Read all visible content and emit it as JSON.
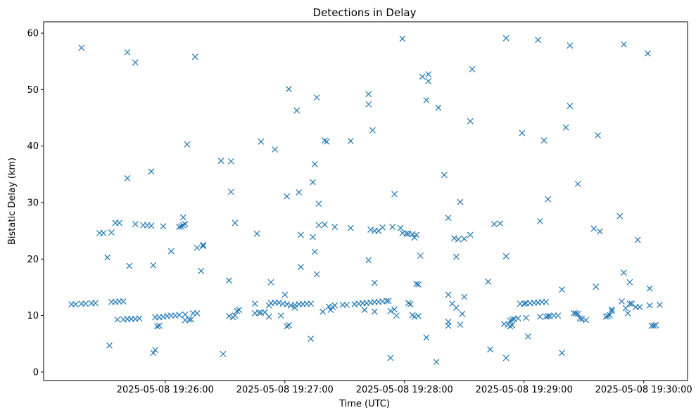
{
  "chart_data": {
    "type": "scatter",
    "title": "Detections in Delay",
    "xlabel": "Time (UTC)",
    "ylabel": "Bistatic Delay (km)",
    "marker": "x",
    "color": "#1f77b4",
    "grid": false,
    "ylim": [
      -1.5,
      62
    ],
    "xlim": [
      "2025-05-08 19:24:59",
      "2025-05-08 19:30:22"
    ],
    "x_ticks": [
      "2025-05-08 19:26:00",
      "2025-05-08 19:27:00",
      "2025-05-08 19:28:00",
      "2025-05-08 19:29:00",
      "2025-05-08 19:30:00"
    ],
    "y_ticks": [
      0,
      10,
      20,
      30,
      40,
      50,
      60
    ],
    "points": [
      [
        "2025-05-08 19:25:13",
        12.0
      ],
      [
        "2025-05-08 19:25:15",
        12.0
      ],
      [
        "2025-05-08 19:25:18",
        12.1
      ],
      [
        "2025-05-08 19:25:20",
        12.1
      ],
      [
        "2025-05-08 19:25:23",
        12.2
      ],
      [
        "2025-05-08 19:25:25",
        12.2
      ],
      [
        "2025-05-08 19:25:18",
        57.4
      ],
      [
        "2025-05-08 19:25:27",
        24.6
      ],
      [
        "2025-05-08 19:25:29",
        24.6
      ],
      [
        "2025-05-08 19:25:33",
        24.7
      ],
      [
        "2025-05-08 19:25:31",
        20.3
      ],
      [
        "2025-05-08 19:25:32",
        4.7
      ],
      [
        "2025-05-08 19:25:33",
        12.4
      ],
      [
        "2025-05-08 19:25:35",
        12.4
      ],
      [
        "2025-05-08 19:25:37",
        12.5
      ],
      [
        "2025-05-08 19:25:39",
        12.5
      ],
      [
        "2025-05-08 19:25:35",
        26.4
      ],
      [
        "2025-05-08 19:25:37",
        26.4
      ],
      [
        "2025-05-08 19:25:36",
        9.3
      ],
      [
        "2025-05-08 19:25:39",
        9.3
      ],
      [
        "2025-05-08 19:25:41",
        9.4
      ],
      [
        "2025-05-08 19:25:43",
        9.4
      ],
      [
        "2025-05-08 19:25:45",
        9.4
      ],
      [
        "2025-05-08 19:25:47",
        9.5
      ],
      [
        "2025-05-08 19:25:41",
        56.6
      ],
      [
        "2025-05-08 19:25:45",
        54.8
      ],
      [
        "2025-05-08 19:25:41",
        34.3
      ],
      [
        "2025-05-08 19:25:42",
        18.8
      ],
      [
        "2025-05-08 19:25:45",
        26.2
      ],
      [
        "2025-05-08 19:25:49",
        26.0
      ],
      [
        "2025-05-08 19:25:51",
        26.0
      ],
      [
        "2025-05-08 19:25:53",
        25.9
      ],
      [
        "2025-05-08 19:25:53",
        35.5
      ],
      [
        "2025-05-08 19:25:54",
        18.9
      ],
      [
        "2025-05-08 19:25:54",
        3.4
      ],
      [
        "2025-05-08 19:25:55",
        3.9
      ],
      [
        "2025-05-08 19:25:55",
        9.7
      ],
      [
        "2025-05-08 19:25:56",
        8.1
      ],
      [
        "2025-05-08 19:25:57",
        8.2
      ],
      [
        "2025-05-08 19:25:57",
        9.7
      ],
      [
        "2025-05-08 19:25:59",
        9.8
      ],
      [
        "2025-05-08 19:26:01",
        9.9
      ],
      [
        "2025-05-08 19:26:03",
        10.0
      ],
      [
        "2025-05-08 19:26:05",
        10.0
      ],
      [
        "2025-05-08 19:26:07",
        10.1
      ],
      [
        "2025-05-08 19:26:10",
        10.2
      ],
      [
        "2025-05-08 19:25:59",
        25.8
      ],
      [
        "2025-05-08 19:26:03",
        21.4
      ],
      [
        "2025-05-08 19:26:07",
        25.7
      ],
      [
        "2025-05-08 19:26:08",
        25.8
      ],
      [
        "2025-05-08 19:26:09",
        26.0
      ],
      [
        "2025-05-08 19:26:10",
        26.2
      ],
      [
        "2025-05-08 19:26:09",
        27.4
      ],
      [
        "2025-05-08 19:26:10",
        9.2
      ],
      [
        "2025-05-08 19:26:12",
        9.3
      ],
      [
        "2025-05-08 19:26:13",
        9.3
      ],
      [
        "2025-05-08 19:26:11",
        40.3
      ],
      [
        "2025-05-08 19:26:14",
        10.4
      ],
      [
        "2025-05-08 19:26:16",
        10.4
      ],
      [
        "2025-05-08 19:26:15",
        55.8
      ],
      [
        "2025-05-08 19:26:16",
        22.0
      ],
      [
        "2025-05-08 19:26:18",
        17.9
      ],
      [
        "2025-05-08 19:26:19",
        22.3
      ],
      [
        "2025-05-08 19:26:19",
        22.5
      ],
      [
        "2025-05-08 19:26:28",
        37.4
      ],
      [
        "2025-05-08 19:26:29",
        3.2
      ],
      [
        "2025-05-08 19:26:32",
        16.2
      ],
      [
        "2025-05-08 19:26:33",
        37.3
      ],
      [
        "2025-05-08 19:26:33",
        31.9
      ],
      [
        "2025-05-08 19:26:32",
        9.9
      ],
      [
        "2025-05-08 19:26:34",
        9.7
      ],
      [
        "2025-05-08 19:26:35",
        10.0
      ],
      [
        "2025-05-08 19:26:36",
        10.8
      ],
      [
        "2025-05-08 19:26:37",
        11.0
      ],
      [
        "2025-05-08 19:26:35",
        26.4
      ],
      [
        "2025-05-08 19:26:45",
        12.1
      ],
      [
        "2025-05-08 19:26:45",
        10.4
      ],
      [
        "2025-05-08 19:26:47",
        10.5
      ],
      [
        "2025-05-08 19:26:48",
        10.5
      ],
      [
        "2025-05-08 19:26:46",
        24.5
      ],
      [
        "2025-05-08 19:26:48",
        40.8
      ],
      [
        "2025-05-08 19:26:50",
        10.6
      ],
      [
        "2025-05-08 19:26:52",
        11.8
      ],
      [
        "2025-05-08 19:26:53",
        15.9
      ],
      [
        "2025-05-08 19:26:52",
        9.8
      ],
      [
        "2025-05-08 19:26:53",
        12.2
      ],
      [
        "2025-05-08 19:26:55",
        12.3
      ],
      [
        "2025-05-08 19:26:57",
        12.3
      ],
      [
        "2025-05-08 19:26:59",
        12.1
      ],
      [
        "2025-05-08 19:27:01",
        12.0
      ],
      [
        "2025-05-08 19:27:03",
        11.8
      ],
      [
        "2025-05-08 19:27:05",
        11.9
      ],
      [
        "2025-05-08 19:27:07",
        12.0
      ],
      [
        "2025-05-08 19:27:09",
        12.0
      ],
      [
        "2025-05-08 19:27:11",
        12.1
      ],
      [
        "2025-05-08 19:27:13",
        12.1
      ],
      [
        "2025-05-08 19:26:55",
        39.4
      ],
      [
        "2025-05-08 19:26:58",
        10.0
      ],
      [
        "2025-05-08 19:27:00",
        13.7
      ],
      [
        "2025-05-08 19:27:01",
        31.1
      ],
      [
        "2025-05-08 19:27:01",
        8.1
      ],
      [
        "2025-05-08 19:27:02",
        8.3
      ],
      [
        "2025-05-08 19:27:02",
        50.1
      ],
      [
        "2025-05-08 19:27:05",
        11.4
      ],
      [
        "2025-05-08 19:27:06",
        46.3
      ],
      [
        "2025-05-08 19:27:07",
        31.8
      ],
      [
        "2025-05-08 19:27:08",
        24.3
      ],
      [
        "2025-05-08 19:27:08",
        18.6
      ],
      [
        "2025-05-08 19:27:13",
        5.9
      ],
      [
        "2025-05-08 19:27:14",
        23.9
      ],
      [
        "2025-05-08 19:27:14",
        33.6
      ],
      [
        "2025-05-08 19:27:15",
        36.8
      ],
      [
        "2025-05-08 19:27:15",
        21.3
      ],
      [
        "2025-05-08 19:27:16",
        17.3
      ],
      [
        "2025-05-08 19:27:16",
        48.6
      ],
      [
        "2025-05-08 19:27:17",
        29.8
      ],
      [
        "2025-05-08 19:27:17",
        26.0
      ],
      [
        "2025-05-08 19:27:19",
        10.7
      ],
      [
        "2025-05-08 19:27:20",
        26.1
      ],
      [
        "2025-05-08 19:27:20",
        41.0
      ],
      [
        "2025-05-08 19:27:21",
        40.8
      ],
      [
        "2025-05-08 19:27:22",
        11.6
      ],
      [
        "2025-05-08 19:27:23",
        11.0
      ],
      [
        "2025-05-08 19:27:24",
        11.5
      ],
      [
        "2025-05-08 19:27:25",
        11.8
      ],
      [
        "2025-05-08 19:27:25",
        25.7
      ],
      [
        "2025-05-08 19:27:29",
        11.9
      ],
      [
        "2025-05-08 19:27:31",
        11.9
      ],
      [
        "2025-05-08 19:27:33",
        25.5
      ],
      [
        "2025-05-08 19:27:33",
        40.9
      ],
      [
        "2025-05-08 19:27:35",
        12.0
      ],
      [
        "2025-05-08 19:27:37",
        12.1
      ],
      [
        "2025-05-08 19:27:39",
        12.2
      ],
      [
        "2025-05-08 19:27:41",
        12.2
      ],
      [
        "2025-05-08 19:27:43",
        12.3
      ],
      [
        "2025-05-08 19:27:45",
        12.4
      ],
      [
        "2025-05-08 19:27:47",
        12.4
      ],
      [
        "2025-05-08 19:27:49",
        12.5
      ],
      [
        "2025-05-08 19:27:51",
        12.6
      ],
      [
        "2025-05-08 19:27:52",
        12.6
      ],
      [
        "2025-05-08 19:27:40",
        11.0
      ],
      [
        "2025-05-08 19:27:42",
        47.4
      ],
      [
        "2025-05-08 19:27:42",
        19.8
      ],
      [
        "2025-05-08 19:27:42",
        49.2
      ],
      [
        "2025-05-08 19:27:43",
        25.2
      ],
      [
        "2025-05-08 19:27:44",
        42.8
      ],
      [
        "2025-05-08 19:27:45",
        25.0
      ],
      [
        "2025-05-08 19:27:45",
        15.8
      ],
      [
        "2025-05-08 19:27:45",
        10.7
      ],
      [
        "2025-05-08 19:27:47",
        25.0
      ],
      [
        "2025-05-08 19:27:49",
        25.6
      ],
      [
        "2025-05-08 19:27:53",
        10.8
      ],
      [
        "2025-05-08 19:27:53",
        2.5
      ],
      [
        "2025-05-08 19:27:54",
        25.7
      ],
      [
        "2025-05-08 19:27:55",
        11.1
      ],
      [
        "2025-05-08 19:27:55",
        31.5
      ],
      [
        "2025-05-08 19:27:56",
        10.0
      ],
      [
        "2025-05-08 19:27:58",
        25.5
      ],
      [
        "2025-05-08 19:27:59",
        24.6
      ],
      [
        "2025-05-08 19:27:59",
        59.0
      ],
      [
        "2025-05-08 19:28:01",
        24.5
      ],
      [
        "2025-05-08 19:28:02",
        24.5
      ],
      [
        "2025-05-08 19:28:02",
        12.2
      ],
      [
        "2025-05-08 19:28:03",
        12.0
      ],
      [
        "2025-05-08 19:28:04",
        24.4
      ],
      [
        "2025-05-08 19:28:04",
        10.1
      ],
      [
        "2025-05-08 19:28:05",
        23.8
      ],
      [
        "2025-05-08 19:28:05",
        9.8
      ],
      [
        "2025-05-08 19:28:06",
        15.6
      ],
      [
        "2025-05-08 19:28:06",
        24.3
      ],
      [
        "2025-05-08 19:28:07",
        15.5
      ],
      [
        "2025-05-08 19:28:07",
        9.9
      ],
      [
        "2025-05-08 19:28:08",
        20.6
      ],
      [
        "2025-05-08 19:28:09",
        52.3
      ],
      [
        "2025-05-08 19:28:11",
        6.1
      ],
      [
        "2025-05-08 19:28:11",
        48.1
      ],
      [
        "2025-05-08 19:28:12",
        52.7
      ],
      [
        "2025-05-08 19:28:12",
        51.5
      ],
      [
        "2025-05-08 19:28:16",
        1.8
      ],
      [
        "2025-05-08 19:28:17",
        46.8
      ],
      [
        "2025-05-08 19:28:20",
        34.9
      ],
      [
        "2025-05-08 19:28:22",
        27.3
      ],
      [
        "2025-05-08 19:28:22",
        13.7
      ],
      [
        "2025-05-08 19:28:22",
        8.9
      ],
      [
        "2025-05-08 19:28:22",
        8.2
      ],
      [
        "2025-05-08 19:28:24",
        12.1
      ],
      [
        "2025-05-08 19:28:25",
        23.7
      ],
      [
        "2025-05-08 19:28:26",
        11.4
      ],
      [
        "2025-05-08 19:28:26",
        20.4
      ],
      [
        "2025-05-08 19:28:27",
        23.5
      ],
      [
        "2025-05-08 19:28:28",
        30.1
      ],
      [
        "2025-05-08 19:28:28",
        8.4
      ],
      [
        "2025-05-08 19:28:29",
        10.3
      ],
      [
        "2025-05-08 19:28:30",
        13.3
      ],
      [
        "2025-05-08 19:28:30",
        23.6
      ],
      [
        "2025-05-08 19:28:33",
        24.3
      ],
      [
        "2025-05-08 19:28:33",
        44.4
      ],
      [
        "2025-05-08 19:28:34",
        53.6
      ],
      [
        "2025-05-08 19:28:42",
        16.0
      ],
      [
        "2025-05-08 19:28:43",
        4.0
      ],
      [
        "2025-05-08 19:28:45",
        26.2
      ],
      [
        "2025-05-08 19:28:48",
        26.3
      ],
      [
        "2025-05-08 19:28:51",
        59.1
      ],
      [
        "2025-05-08 19:28:51",
        20.5
      ],
      [
        "2025-05-08 19:28:51",
        2.5
      ],
      [
        "2025-05-08 19:28:50",
        8.5
      ],
      [
        "2025-05-08 19:28:52",
        8.4
      ],
      [
        "2025-05-08 19:28:53",
        8.1
      ],
      [
        "2025-05-08 19:28:53",
        9.1
      ],
      [
        "2025-05-08 19:28:54",
        8.3
      ],
      [
        "2025-05-08 19:28:54",
        9.3
      ],
      [
        "2025-05-08 19:28:55",
        9.4
      ],
      [
        "2025-05-08 19:28:57",
        9.5
      ],
      [
        "2025-05-08 19:28:58",
        12.1
      ],
      [
        "2025-05-08 19:28:59",
        42.3
      ],
      [
        "2025-05-08 19:29:00",
        12.1
      ],
      [
        "2025-05-08 19:29:01",
        12.2
      ],
      [
        "2025-05-08 19:29:01",
        9.6
      ],
      [
        "2025-05-08 19:29:02",
        6.3
      ],
      [
        "2025-05-08 19:29:03",
        12.2
      ],
      [
        "2025-05-08 19:29:05",
        12.3
      ],
      [
        "2025-05-08 19:29:07",
        12.3
      ],
      [
        "2025-05-08 19:29:09",
        12.4
      ],
      [
        "2025-05-08 19:29:11",
        12.4
      ],
      [
        "2025-05-08 19:29:07",
        58.8
      ],
      [
        "2025-05-08 19:29:08",
        26.7
      ],
      [
        "2025-05-08 19:29:08",
        9.8
      ],
      [
        "2025-05-08 19:29:10",
        41.0
      ],
      [
        "2025-05-08 19:29:11",
        9.8
      ],
      [
        "2025-05-08 19:29:12",
        9.9
      ],
      [
        "2025-05-08 19:29:12",
        30.6
      ],
      [
        "2025-05-08 19:29:13",
        9.9
      ],
      [
        "2025-05-08 19:29:15",
        10.0
      ],
      [
        "2025-05-08 19:29:17",
        10.0
      ],
      [
        "2025-05-08 19:29:19",
        3.4
      ],
      [
        "2025-05-08 19:29:19",
        14.6
      ],
      [
        "2025-05-08 19:29:21",
        43.3
      ],
      [
        "2025-05-08 19:29:23",
        57.8
      ],
      [
        "2025-05-08 19:29:23",
        47.1
      ],
      [
        "2025-05-08 19:29:25",
        10.4
      ],
      [
        "2025-05-08 19:29:26",
        10.4
      ],
      [
        "2025-05-08 19:29:27",
        10.3
      ],
      [
        "2025-05-08 19:29:27",
        33.3
      ],
      [
        "2025-05-08 19:29:28",
        9.5
      ],
      [
        "2025-05-08 19:29:29",
        9.4
      ],
      [
        "2025-05-08 19:29:31",
        9.2
      ],
      [
        "2025-05-08 19:29:35",
        25.4
      ],
      [
        "2025-05-08 19:29:36",
        15.1
      ],
      [
        "2025-05-08 19:29:37",
        41.9
      ],
      [
        "2025-05-08 19:29:38",
        24.9
      ],
      [
        "2025-05-08 19:29:41",
        9.8
      ],
      [
        "2025-05-08 19:29:42",
        9.9
      ],
      [
        "2025-05-08 19:29:43",
        10.1
      ],
      [
        "2025-05-08 19:29:44",
        10.8
      ],
      [
        "2025-05-08 19:29:44",
        11.1
      ],
      [
        "2025-05-08 19:29:48",
        27.6
      ],
      [
        "2025-05-08 19:29:49",
        12.5
      ],
      [
        "2025-05-08 19:29:50",
        58.0
      ],
      [
        "2025-05-08 19:29:50",
        17.6
      ],
      [
        "2025-05-08 19:29:51",
        11.3
      ],
      [
        "2025-05-08 19:29:52",
        10.4
      ],
      [
        "2025-05-08 19:29:53",
        15.9
      ],
      [
        "2025-05-08 19:29:53",
        12.1
      ],
      [
        "2025-05-08 19:29:54",
        12.1
      ],
      [
        "2025-05-08 19:29:56",
        11.5
      ],
      [
        "2025-05-08 19:29:57",
        23.4
      ],
      [
        "2025-05-08 19:29:58",
        11.5
      ],
      [
        "2025-05-08 19:30:02",
        56.4
      ],
      [
        "2025-05-08 19:30:03",
        11.8
      ],
      [
        "2025-05-08 19:30:03",
        14.8
      ],
      [
        "2025-05-08 19:30:04",
        8.2
      ],
      [
        "2025-05-08 19:30:05",
        8.2
      ],
      [
        "2025-05-08 19:30:06",
        8.3
      ],
      [
        "2025-05-08 19:30:08",
        11.9
      ]
    ]
  }
}
